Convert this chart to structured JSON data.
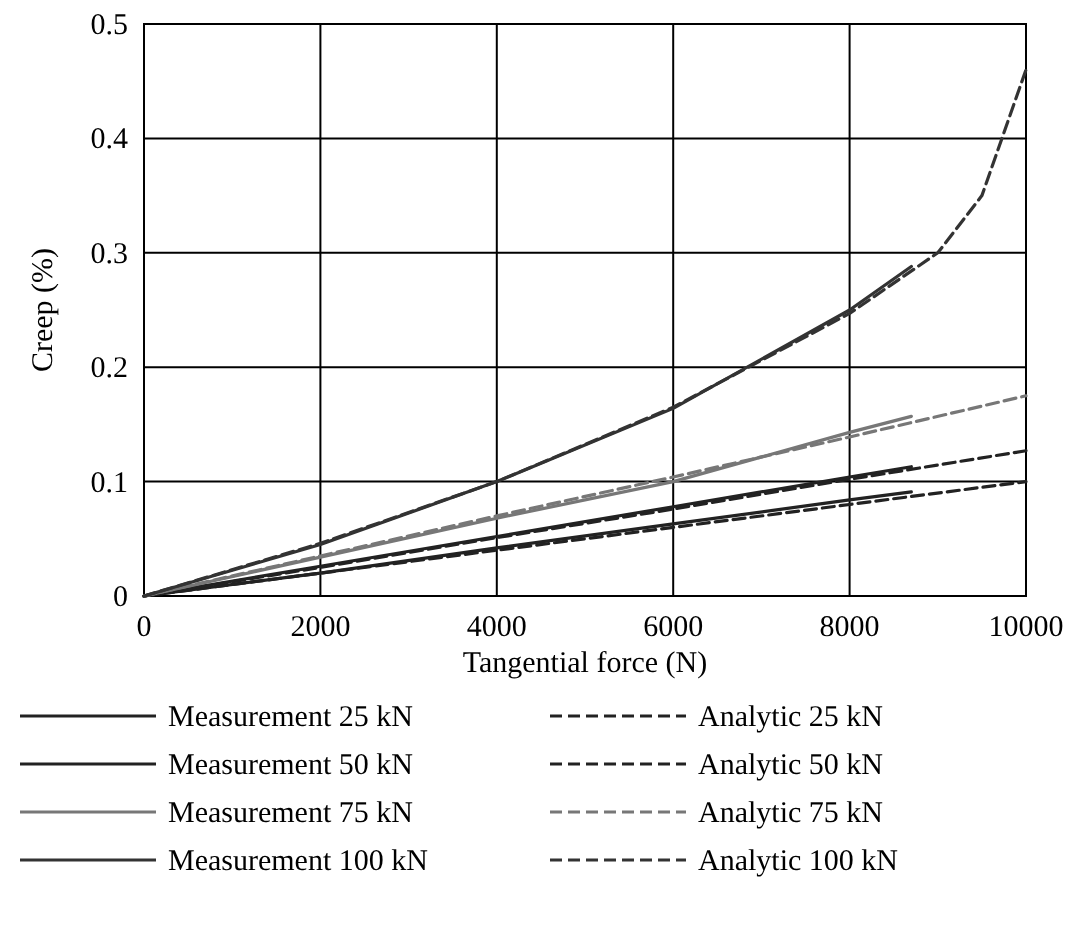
{
  "chart_data": {
    "type": "line",
    "xlabel": "Tangential force (N)",
    "ylabel": "Creep (%)",
    "xlim": [
      0,
      10000
    ],
    "ylim": [
      0,
      0.5
    ],
    "xticks": [
      0,
      2000,
      4000,
      6000,
      8000,
      10000
    ],
    "yticks": [
      0,
      0.1,
      0.2,
      0.3,
      0.4,
      0.5
    ],
    "grid": true,
    "legend": "bottom",
    "marker": "none",
    "series": [
      {
        "name": "Measurement 25 kN",
        "color": "#222222",
        "line_style": "solid",
        "x": [
          0,
          2000,
          4000,
          6000,
          8000,
          8700
        ],
        "values": [
          0,
          0.02,
          0.042,
          0.063,
          0.084,
          0.091
        ]
      },
      {
        "name": "Analytic 25 kN",
        "color": "#222222",
        "line_style": "dashed",
        "x": [
          0,
          2000,
          4000,
          6000,
          8000,
          10000
        ],
        "values": [
          0,
          0.02,
          0.04,
          0.06,
          0.08,
          0.1
        ]
      },
      {
        "name": "Measurement 50 kN",
        "color": "#222222",
        "line_style": "solid",
        "x": [
          0,
          2000,
          4000,
          6000,
          8000,
          8700
        ],
        "values": [
          0,
          0.026,
          0.052,
          0.078,
          0.104,
          0.113
        ]
      },
      {
        "name": "Analytic 50 kN",
        "color": "#222222",
        "line_style": "dashed",
        "x": [
          0,
          2000,
          4000,
          6000,
          8000,
          10000
        ],
        "values": [
          0,
          0.025,
          0.051,
          0.076,
          0.102,
          0.127
        ]
      },
      {
        "name": "Measurement 75 kN",
        "color": "#777777",
        "line_style": "solid",
        "x": [
          0,
          2000,
          4000,
          6000,
          8000,
          8700
        ],
        "values": [
          0,
          0.034,
          0.068,
          0.1,
          0.143,
          0.157
        ]
      },
      {
        "name": "Analytic 75 kN",
        "color": "#777777",
        "line_style": "dashed",
        "x": [
          0,
          2000,
          4000,
          6000,
          8000,
          10000
        ],
        "values": [
          0,
          0.035,
          0.07,
          0.104,
          0.139,
          0.175
        ]
      },
      {
        "name": "Measurement 100 kN",
        "color": "#333333",
        "line_style": "solid",
        "x": [
          0,
          2000,
          4000,
          6000,
          8000,
          8700
        ],
        "values": [
          0,
          0.045,
          0.1,
          0.164,
          0.25,
          0.288
        ]
      },
      {
        "name": "Analytic 100 kN",
        "color": "#333333",
        "line_style": "dashed",
        "x": [
          0,
          2000,
          4000,
          6000,
          8000,
          9000,
          9500,
          10000
        ],
        "values": [
          0,
          0.046,
          0.1,
          0.165,
          0.247,
          0.3,
          0.35,
          0.46
        ]
      }
    ]
  }
}
